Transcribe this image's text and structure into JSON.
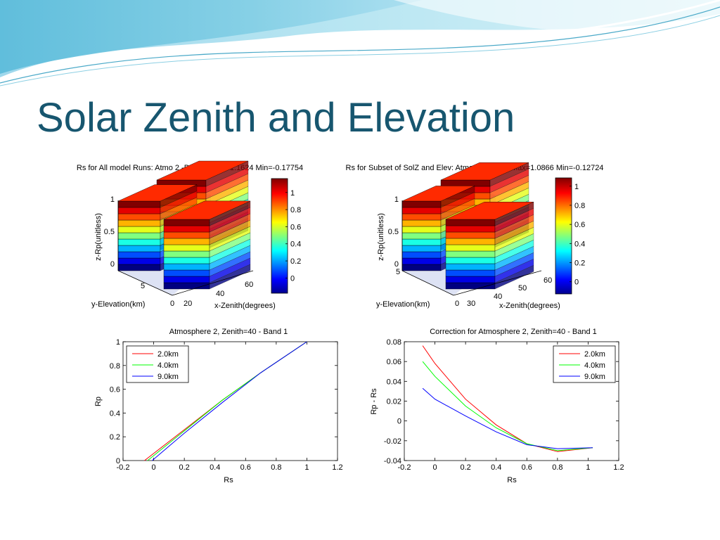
{
  "slide": {
    "title": "Solar Zenith and Elevation"
  },
  "colors": {
    "title": "#17566f",
    "red": "#ff0000",
    "green": "#00ff00",
    "blue": "#0000ff"
  },
  "chart_data": [
    {
      "type": "3d-bar",
      "title": "Rs for All model Runs: Atmo 2 -Band 1 Max=1.1624 Min=-0.17754",
      "zlabel": "z-Rp(unitless)",
      "ylabel": "y-Elevation(km)",
      "xlabel": "x-Zenith(degrees)",
      "zticks": [
        "0",
        "0.5",
        "1"
      ],
      "yticks": [
        "0",
        "5"
      ],
      "xticks": [
        "20",
        "40",
        "60"
      ],
      "colorbar": {
        "ticks": [
          "0",
          "0.2",
          "0.4",
          "0.6",
          "0.8",
          "1"
        ]
      },
      "max": 1.1624,
      "min": -0.17754
    },
    {
      "type": "3d-bar",
      "title": "Rs for Subset of SolZ and Elev: Atmo 2 -Band 1 Max=1.0866 Min=-0.12724",
      "zlabel": "z-Rp(unitless)",
      "ylabel": "y-Elevation(km)",
      "xlabel": "x-Zenith(degrees)",
      "zticks": [
        "0",
        "0.5",
        "1"
      ],
      "yticks": [
        "0",
        "5"
      ],
      "xticks": [
        "30",
        "40",
        "50",
        "60"
      ],
      "colorbar": {
        "ticks": [
          "0",
          "0.2",
          "0.4",
          "0.6",
          "0.8",
          "1"
        ]
      },
      "max": 1.0866,
      "min": -0.12724
    },
    {
      "type": "line",
      "title": "Atmosphere 2, Zenith=40 - Band 1",
      "xlabel": "Rs",
      "ylabel": "Rp",
      "xlim": [
        -0.2,
        1.2
      ],
      "ylim": [
        0,
        1
      ],
      "xticks": [
        "-0.2",
        "0",
        "0.2",
        "0.4",
        "0.6",
        "0.8",
        "1",
        "1.2"
      ],
      "yticks": [
        "0",
        "0.2",
        "0.4",
        "0.6",
        "0.8",
        "1"
      ],
      "legend": "top-left",
      "series": [
        {
          "name": "2.0km",
          "color": "#ff0000",
          "x": [
            -0.06,
            0.2,
            0.45,
            0.7,
            1.0
          ],
          "y": [
            0,
            0.26,
            0.51,
            0.74,
            1.0
          ]
        },
        {
          "name": "4.0km",
          "color": "#00ff00",
          "x": [
            -0.04,
            0.2,
            0.45,
            0.7,
            1.0
          ],
          "y": [
            0,
            0.25,
            0.51,
            0.74,
            1.0
          ]
        },
        {
          "name": "9.0km",
          "color": "#0000ff",
          "x": [
            -0.01,
            0.2,
            0.45,
            0.7,
            1.0
          ],
          "y": [
            0,
            0.23,
            0.49,
            0.74,
            1.0
          ]
        }
      ]
    },
    {
      "type": "line",
      "title": "Correction for Atmosphere 2, Zenith=40 - Band 1",
      "xlabel": "Rs",
      "ylabel": "Rp - Rs",
      "xlim": [
        -0.2,
        1.2
      ],
      "ylim": [
        -0.04,
        0.08
      ],
      "xticks": [
        "-0.2",
        "0",
        "0.2",
        "0.4",
        "0.6",
        "0.8",
        "1",
        "1.2"
      ],
      "yticks": [
        "-0.04",
        "-0.02",
        "0",
        "0.02",
        "0.04",
        "0.06",
        "0.08"
      ],
      "legend": "top-right",
      "series": [
        {
          "name": "2.0km",
          "color": "#ff0000",
          "x": [
            -0.08,
            0.0,
            0.2,
            0.4,
            0.6,
            0.8,
            1.03
          ],
          "y": [
            0.076,
            0.058,
            0.022,
            -0.004,
            -0.023,
            -0.031,
            -0.027
          ]
        },
        {
          "name": "4.0km",
          "color": "#00ff00",
          "x": [
            -0.08,
            0.0,
            0.2,
            0.4,
            0.6,
            0.8,
            1.03
          ],
          "y": [
            0.06,
            0.045,
            0.015,
            -0.007,
            -0.023,
            -0.03,
            -0.027
          ]
        },
        {
          "name": "9.0km",
          "color": "#0000ff",
          "x": [
            -0.08,
            0.0,
            0.2,
            0.4,
            0.6,
            0.8,
            1.03
          ],
          "y": [
            0.033,
            0.022,
            0.005,
            -0.011,
            -0.024,
            -0.028,
            -0.027
          ]
        }
      ]
    }
  ]
}
